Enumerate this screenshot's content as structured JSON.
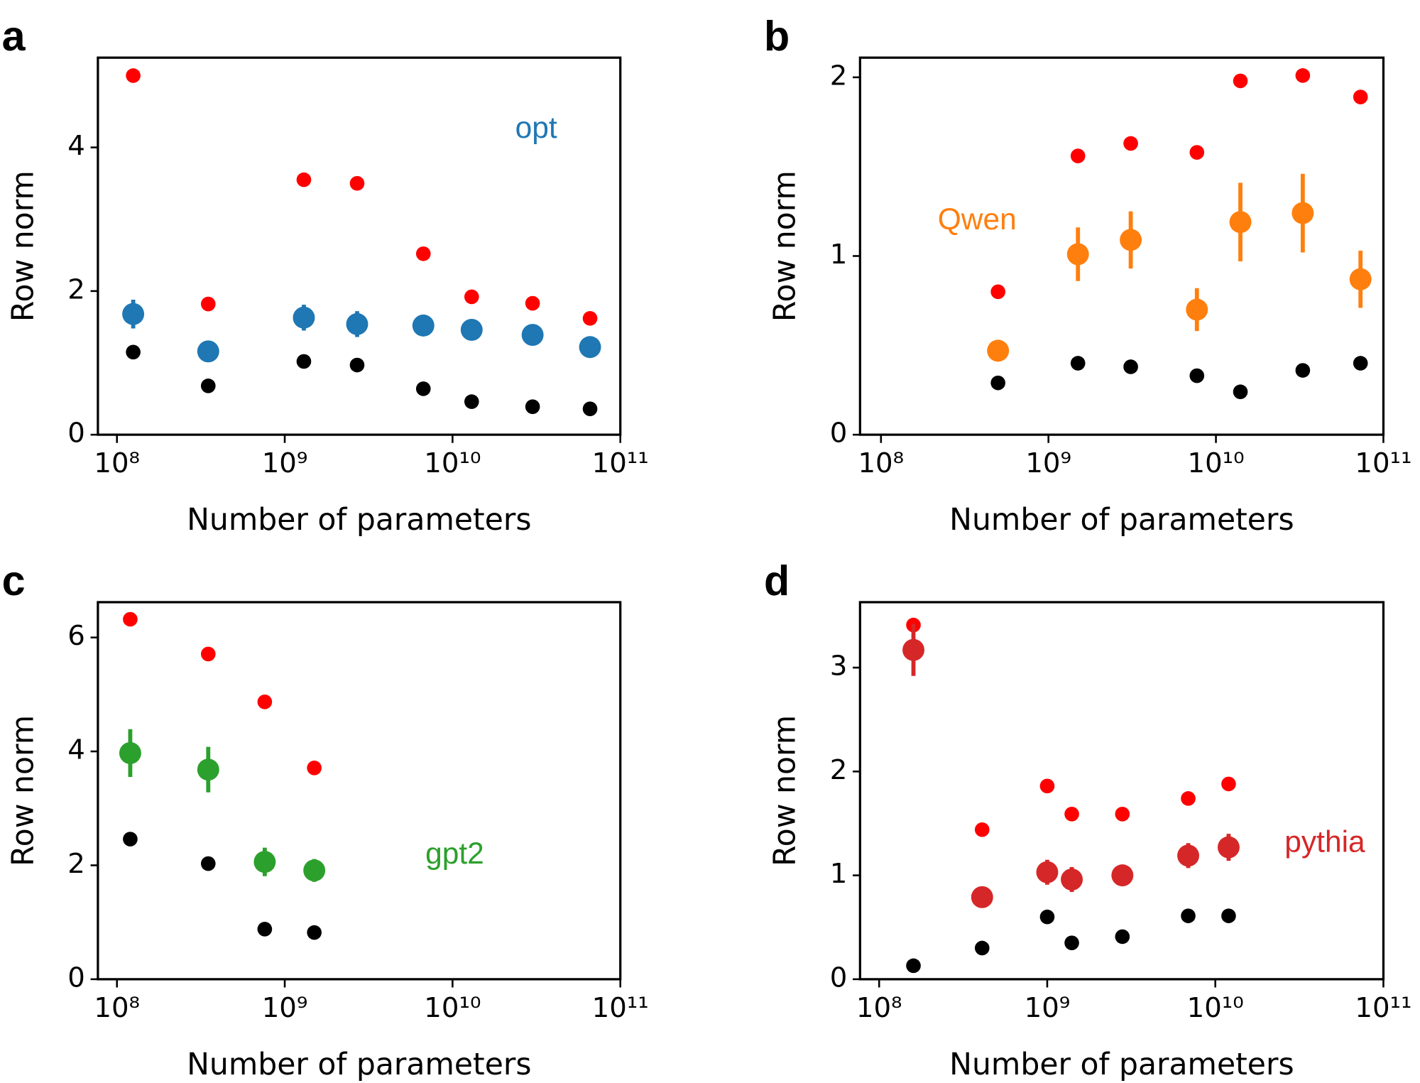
{
  "chart_data": [
    {
      "type": "scatter",
      "panel_label": "a",
      "annotation": "opt",
      "xlabel": "Number of parameters",
      "ylabel": "Row norm",
      "xscale": "log",
      "xlim": [
        77000000,
        100000000000
      ],
      "ylim": [
        0,
        5.25
      ],
      "xticks": [
        {
          "value": 100000000,
          "label": "10⁸"
        },
        {
          "value": 1000000000,
          "label": "10⁹"
        },
        {
          "value": 10000000000,
          "label": "10¹⁰"
        },
        {
          "value": 100000000000,
          "label": "10¹¹"
        }
      ],
      "yticks": [
        0,
        2,
        4
      ],
      "x": [
        125000000,
        350000000,
        1300000000,
        2700000000,
        6700000000,
        13000000000,
        30000000000,
        66000000000
      ],
      "series": [
        {
          "color": "#ff0000",
          "values": [
            5.0,
            1.82,
            3.55,
            3.5,
            2.52,
            1.92,
            1.83,
            1.62
          ]
        },
        {
          "color": "#1f77b4",
          "values": [
            1.68,
            1.16,
            1.63,
            1.54,
            1.52,
            1.46,
            1.39,
            1.22
          ],
          "errors": [
            0.2,
            0.05,
            0.18,
            0.18,
            0.1,
            0.1,
            0.06,
            0.05
          ]
        },
        {
          "color": "#000000",
          "values": [
            1.15,
            0.68,
            1.02,
            0.97,
            0.64,
            0.46,
            0.39,
            0.36
          ]
        }
      ]
    },
    {
      "type": "scatter",
      "panel_label": "b",
      "annotation": "Qwen",
      "xlabel": "Number of parameters",
      "ylabel": "Row norm",
      "xscale": "log",
      "xlim": [
        75000000,
        100000000000
      ],
      "ylim": [
        0,
        2.11
      ],
      "xticks": [
        {
          "value": 100000000,
          "label": "10⁸"
        },
        {
          "value": 1000000000,
          "label": "10⁹"
        },
        {
          "value": 10000000000,
          "label": "10¹⁰"
        },
        {
          "value": 100000000000,
          "label": "10¹¹"
        }
      ],
      "yticks": [
        0,
        1,
        2
      ],
      "x": [
        500000000,
        1500000000,
        3100000000,
        7700000000,
        14000000000,
        33000000000,
        73000000000
      ],
      "series": [
        {
          "color": "#ff0000",
          "values": [
            0.8,
            1.56,
            1.63,
            1.58,
            1.98,
            2.01,
            1.89
          ]
        },
        {
          "color": "#ff7f0e",
          "values": [
            0.47,
            1.01,
            1.09,
            0.7,
            1.19,
            1.24,
            0.87
          ],
          "errors": [
            0.03,
            0.15,
            0.16,
            0.12,
            0.22,
            0.22,
            0.16
          ]
        },
        {
          "color": "#000000",
          "values": [
            0.29,
            0.4,
            0.38,
            0.33,
            0.24,
            0.36,
            0.4
          ]
        }
      ]
    },
    {
      "type": "scatter",
      "panel_label": "c",
      "annotation": "gpt2",
      "xlabel": "Number of parameters",
      "ylabel": "Row norm",
      "xscale": "log",
      "xlim": [
        77000000,
        100000000000
      ],
      "ylim": [
        0,
        6.62
      ],
      "xticks": [
        {
          "value": 100000000,
          "label": "10⁸"
        },
        {
          "value": 1000000000,
          "label": "10⁹"
        },
        {
          "value": 10000000000,
          "label": "10¹⁰"
        },
        {
          "value": 100000000000,
          "label": "10¹¹"
        }
      ],
      "yticks": [
        0,
        2,
        4,
        6
      ],
      "x": [
        120000000,
        350000000,
        760000000,
        1500000000
      ],
      "series": [
        {
          "color": "#ff0000",
          "values": [
            6.32,
            5.71,
            4.87,
            3.71
          ]
        },
        {
          "color": "#2ca02c",
          "values": [
            3.97,
            3.68,
            2.06,
            1.91
          ],
          "errors": [
            0.42,
            0.4,
            0.25,
            0.2
          ]
        },
        {
          "color": "#000000",
          "values": [
            2.46,
            2.03,
            0.88,
            0.82
          ]
        }
      ]
    },
    {
      "type": "scatter",
      "panel_label": "d",
      "annotation": "pythia",
      "xlabel": "Number of parameters",
      "ylabel": "Row norm",
      "xscale": "log",
      "xlim": [
        77000000,
        100000000000
      ],
      "ylim": [
        0,
        3.63
      ],
      "xticks": [
        {
          "value": 100000000,
          "label": "10⁸"
        },
        {
          "value": 1000000000,
          "label": "10⁹"
        },
        {
          "value": 10000000000,
          "label": "10¹⁰"
        },
        {
          "value": 100000000000,
          "label": "10¹¹"
        }
      ],
      "yticks": [
        0,
        1,
        2,
        3
      ],
      "x": [
        160000000,
        410000000,
        1000000000,
        1400000000,
        2800000000,
        6900000000,
        12000000000
      ],
      "series": [
        {
          "color": "#ff0000",
          "values": [
            3.41,
            1.44,
            1.86,
            1.59,
            1.59,
            1.74,
            1.88
          ]
        },
        {
          "color": "#d62728",
          "values": [
            3.17,
            0.79,
            1.03,
            0.96,
            1.0,
            1.19,
            1.27
          ],
          "errors": [
            0.25,
            0.03,
            0.12,
            0.12,
            0.08,
            0.12,
            0.13
          ]
        },
        {
          "color": "#000000",
          "values": [
            0.13,
            0.3,
            0.6,
            0.35,
            0.41,
            0.61,
            0.61
          ]
        }
      ]
    }
  ]
}
